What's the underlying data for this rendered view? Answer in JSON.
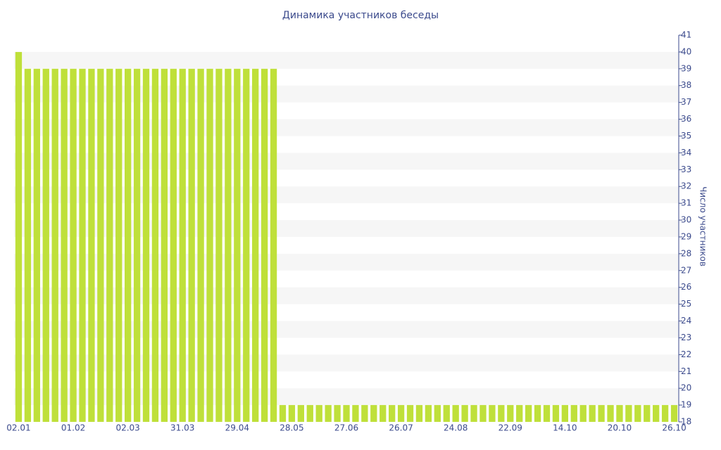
{
  "chart_data": {
    "type": "bar",
    "title": "Динамика участников беседы",
    "y_label": "Число участников",
    "categories": [
      "02.01",
      null,
      null,
      null,
      null,
      null,
      "01.02",
      null,
      null,
      null,
      null,
      null,
      "02.03",
      null,
      null,
      null,
      null,
      null,
      "31.03",
      null,
      null,
      null,
      null,
      null,
      "29.04",
      null,
      null,
      null,
      null,
      null,
      "28.05",
      null,
      null,
      null,
      null,
      null,
      "27.06",
      null,
      null,
      null,
      null,
      null,
      "26.07",
      null,
      null,
      null,
      null,
      null,
      "24.08",
      null,
      null,
      null,
      null,
      null,
      "22.09",
      null,
      null,
      null,
      null,
      null,
      "14.10",
      null,
      null,
      null,
      null,
      null,
      "20.10",
      null,
      null,
      null,
      null,
      null,
      "26.10"
    ],
    "values": [
      40,
      39,
      39,
      39,
      39,
      39,
      39,
      39,
      39,
      39,
      39,
      39,
      39,
      39,
      39,
      39,
      39,
      39,
      39,
      39,
      39,
      39,
      39,
      39,
      39,
      39,
      39,
      39,
      39,
      19,
      19,
      19,
      19,
      19,
      19,
      19,
      19,
      19,
      19,
      19,
      19,
      19,
      19,
      19,
      19,
      19,
      19,
      19,
      19,
      19,
      19,
      19,
      19,
      19,
      19,
      19,
      19,
      19,
      19,
      19,
      19,
      19,
      19,
      19,
      19,
      19,
      19,
      19,
      19,
      19,
      19,
      19,
      19
    ],
    "color": "#bfe03a",
    "ylim": [
      18,
      41
    ],
    "yticks": [
      18,
      19,
      20,
      21,
      22,
      23,
      24,
      25,
      26,
      27,
      28,
      29,
      30,
      31,
      32,
      33,
      34,
      35,
      36,
      37,
      38,
      39,
      40,
      41
    ],
    "y_axis_side": "right",
    "grid": "bands"
  }
}
